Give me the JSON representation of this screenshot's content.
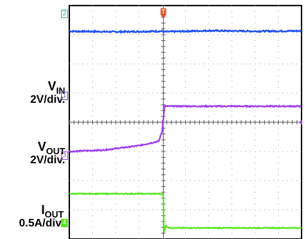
{
  "chart_data": {
    "type": "line",
    "grid": true,
    "x": {
      "divisions": 10,
      "trigger_division": 4.05
    },
    "y": {
      "divisions": 8,
      "center_division": 4
    },
    "series": [
      {
        "channel": "2",
        "color": "#1f4ff0",
        "level_div": 7.1,
        "points": [
          [
            0,
            7.12
          ],
          [
            2,
            7.1
          ],
          [
            4,
            7.12
          ],
          [
            4.05,
            7.1
          ],
          [
            6,
            7.14
          ],
          [
            8,
            7.12
          ],
          [
            10,
            7.13
          ]
        ],
        "noise": 0.05
      },
      {
        "channel": "1",
        "name_main": "V",
        "name_sub": "IN",
        "scale": "2V/div.",
        "color": "#9b3cf0",
        "level_div": 4.5,
        "points": [
          [
            0,
            3.0
          ],
          [
            1.5,
            3.05
          ],
          [
            3.0,
            3.2
          ],
          [
            3.85,
            3.35
          ],
          [
            4.0,
            3.7
          ],
          [
            4.1,
            4.55
          ],
          [
            5,
            4.55
          ],
          [
            10,
            4.55
          ]
        ],
        "noise": 0.04
      },
      {
        "channel": "3",
        "name_main": "V",
        "name_sub": "OUT",
        "scale": "2V/div.",
        "color": "#55e620",
        "level_div": 1.1,
        "points": [
          [
            0,
            1.55
          ],
          [
            2,
            1.55
          ],
          [
            4.0,
            1.55
          ],
          [
            4.05,
            1.45
          ],
          [
            4.07,
            0.2
          ],
          [
            4.15,
            0.45
          ],
          [
            4.3,
            0.38
          ],
          [
            6,
            0.38
          ],
          [
            10,
            0.38
          ]
        ],
        "noise": 0.03
      },
      {
        "channel": "4",
        "name_main": "I",
        "name_sub": "OUT",
        "scale": "0.5A/div."
      }
    ],
    "trigger_marker": "T"
  },
  "colors": {
    "trigger": "#e8501c",
    "ch2_mark": "#2bb8a0",
    "ch1_mark": "#5a5acc",
    "ch3_mark": "#9b3cf0",
    "ch4_mark": "#55e620"
  }
}
